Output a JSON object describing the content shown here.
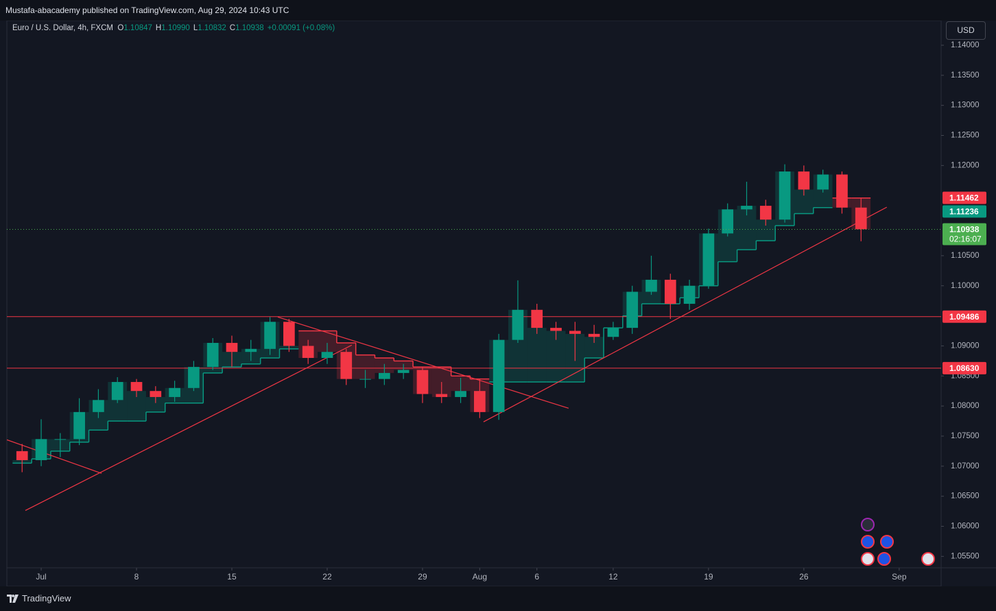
{
  "header": {
    "publisher": "Mustafa-abacademy published on TradingView.com, Aug 29, 2024 10:43 UTC",
    "brand": "TradingView"
  },
  "chart_data": {
    "type": "candlestick",
    "symbol": "Euro / U.S. Dollar, 4h, FXCM",
    "ohlc_legend": [
      {
        "key": "O",
        "text": "1.10847"
      },
      {
        "key": "H",
        "text": "1.10990"
      },
      {
        "key": "L",
        "text": "1.10832"
      },
      {
        "key": "C",
        "text": "1.10938"
      }
    ],
    "change": "+0.00091 (+0.08%)",
    "currency": "USD",
    "up_color": "#089981",
    "down_color": "#f23645",
    "x": [
      -1,
      0,
      1,
      2,
      3,
      4,
      5,
      6,
      7,
      8,
      9,
      10,
      11,
      12,
      13,
      14,
      15,
      16,
      17,
      18,
      19,
      20,
      21,
      22,
      23,
      24,
      25,
      26,
      27,
      28,
      29,
      30,
      31,
      32,
      33,
      34,
      35,
      36,
      37,
      38,
      39,
      40,
      41,
      42,
      43
    ],
    "open": [
      1.0725,
      1.071,
      1.0745,
      1.0745,
      1.079,
      1.081,
      1.084,
      1.0825,
      1.0815,
      1.083,
      1.0865,
      1.0905,
      1.089,
      1.0895,
      1.094,
      1.09,
      1.088,
      1.089,
      1.0845,
      1.0845,
      1.0855,
      1.086,
      1.082,
      1.0815,
      1.0825,
      1.079,
      1.091,
      1.096,
      1.093,
      1.0925,
      1.092,
      1.0915,
      1.093,
      1.099,
      1.101,
      1.097,
      1.1,
      1.1087,
      1.1127,
      1.1133,
      1.111,
      1.119,
      1.116,
      1.1185,
      1.113
    ],
    "high": [
      1.0737,
      1.0778,
      1.0755,
      1.0813,
      1.0828,
      1.0848,
      1.0845,
      1.0833,
      1.0842,
      1.0875,
      1.0913,
      1.0917,
      1.091,
      1.0948,
      1.0945,
      1.091,
      1.0905,
      1.0895,
      1.086,
      1.087,
      1.087,
      1.0865,
      1.084,
      1.0847,
      1.0845,
      1.092,
      1.1009,
      1.097,
      1.094,
      1.094,
      1.0935,
      1.094,
      1.1,
      1.105,
      1.102,
      1.101,
      1.1095,
      1.1137,
      1.1173,
      1.1143,
      1.1202,
      1.12,
      1.1193,
      1.119,
      1.1145
    ],
    "low": [
      1.069,
      1.07,
      1.0715,
      1.0735,
      1.078,
      1.0805,
      1.0815,
      1.0805,
      1.0807,
      1.0825,
      1.086,
      1.0865,
      1.0875,
      1.0885,
      1.089,
      1.087,
      1.087,
      1.0835,
      1.083,
      1.0835,
      1.0845,
      1.0805,
      1.0805,
      1.0805,
      1.078,
      1.0777,
      1.0905,
      1.092,
      1.091,
      1.0875,
      1.0905,
      1.091,
      1.092,
      1.0985,
      1.0945,
      1.096,
      1.0995,
      1.1082,
      1.1117,
      1.11,
      1.1105,
      1.115,
      1.1155,
      1.112,
      1.1074
    ],
    "close": [
      1.071,
      1.0745,
      1.0745,
      1.079,
      1.081,
      1.084,
      1.0825,
      1.0815,
      1.083,
      1.0865,
      1.0905,
      1.089,
      1.0895,
      1.094,
      1.09,
      1.088,
      1.089,
      1.0845,
      1.0845,
      1.0855,
      1.086,
      1.082,
      1.0815,
      1.0825,
      1.079,
      1.091,
      1.096,
      1.093,
      1.0925,
      1.092,
      1.0915,
      1.093,
      1.099,
      1.101,
      1.097,
      1.1,
      1.1087,
      1.1127,
      1.1133,
      1.111,
      1.119,
      1.116,
      1.1185,
      1.113,
      1.1094
    ],
    "trail_up": [
      1.0705,
      1.0712,
      1.0725,
      1.074,
      1.076,
      1.0775,
      1.0775,
      1.079,
      1.0805,
      1.0805,
      1.0855,
      1.0865,
      1.087,
      1.088,
      1.0895,
      null,
      null,
      null,
      null,
      null,
      null,
      null,
      null,
      null,
      null,
      1.084,
      1.084,
      1.084,
      1.084,
      1.084,
      1.088,
      1.093,
      1.095,
      1.097,
      1.097,
      1.098,
      1.1,
      1.104,
      1.106,
      1.1075,
      1.11,
      1.112,
      1.113,
      null,
      null
    ],
    "trail_down": [
      null,
      null,
      null,
      null,
      null,
      null,
      null,
      null,
      null,
      null,
      null,
      null,
      null,
      null,
      null,
      1.0925,
      1.0925,
      1.0905,
      1.0885,
      1.088,
      1.0875,
      1.0865,
      1.0865,
      1.085,
      1.0845,
      null,
      null,
      null,
      null,
      null,
      null,
      null,
      null,
      null,
      null,
      null,
      null,
      null,
      null,
      null,
      null,
      null,
      null,
      1.1146,
      1.1146
    ],
    "xlim": [
      -1.8,
      47.2
    ],
    "xticks": [
      {
        "value": 0,
        "label": "Jul"
      },
      {
        "value": 5,
        "label": "8"
      },
      {
        "value": 10,
        "label": "15"
      },
      {
        "value": 15,
        "label": "22"
      },
      {
        "value": 20,
        "label": "29"
      },
      {
        "value": 23,
        "label": "Aug"
      },
      {
        "value": 26,
        "label": "6"
      },
      {
        "value": 30,
        "label": "12"
      },
      {
        "value": 35,
        "label": "19"
      },
      {
        "value": 40,
        "label": "26"
      },
      {
        "value": 45,
        "label": "Sep"
      }
    ],
    "ylim": [
      1.0531,
      1.1441
    ],
    "yticks": [
      {
        "value": 1.055,
        "label": "1.05500"
      },
      {
        "value": 1.06,
        "label": "1.06000"
      },
      {
        "value": 1.065,
        "label": "1.06500"
      },
      {
        "value": 1.07,
        "label": "1.07000"
      },
      {
        "value": 1.075,
        "label": "1.07500"
      },
      {
        "value": 1.08,
        "label": "1.08000"
      },
      {
        "value": 1.085,
        "label": "1.08500"
      },
      {
        "value": 1.09,
        "label": "1.09000"
      },
      {
        "value": 1.1,
        "label": "1.10000"
      },
      {
        "value": 1.105,
        "label": "1.10500"
      },
      {
        "value": 1.12,
        "label": "1.12000"
      },
      {
        "value": 1.125,
        "label": "1.12500"
      },
      {
        "value": 1.13,
        "label": "1.13000"
      },
      {
        "value": 1.135,
        "label": "1.13500"
      },
      {
        "value": 1.14,
        "label": "1.14000"
      }
    ],
    "hlines": [
      {
        "value": 1.09486,
        "label": "1.09486",
        "color": "#f23645"
      },
      {
        "value": 1.0863,
        "label": "1.08630",
        "color": "#f23645"
      }
    ],
    "price_tags": [
      {
        "value": 1.11462,
        "label": "1.11462",
        "color": "#f23645"
      },
      {
        "value": 1.11236,
        "label": "1.11236",
        "color": "#089981"
      },
      {
        "value": 1.10938,
        "label": "1.10938",
        "color": "#4caf50",
        "countdown": "02:16:07"
      }
    ],
    "trendlines": [
      {
        "x": [
          -0.83,
          16.29
        ],
        "y": [
          1.06263,
          1.09013
        ]
      },
      {
        "x": [
          23.2,
          44.35
        ],
        "y": [
          1.07737,
          1.11307
        ]
      },
      {
        "x": [
          12.41,
          27.66
        ],
        "y": [
          1.0948,
          1.07963
        ]
      },
      {
        "x": [
          -1.8,
          3.17
        ],
        "y": [
          1.07439,
          1.0688
        ]
      }
    ],
    "trendline_color": "#f23645"
  }
}
